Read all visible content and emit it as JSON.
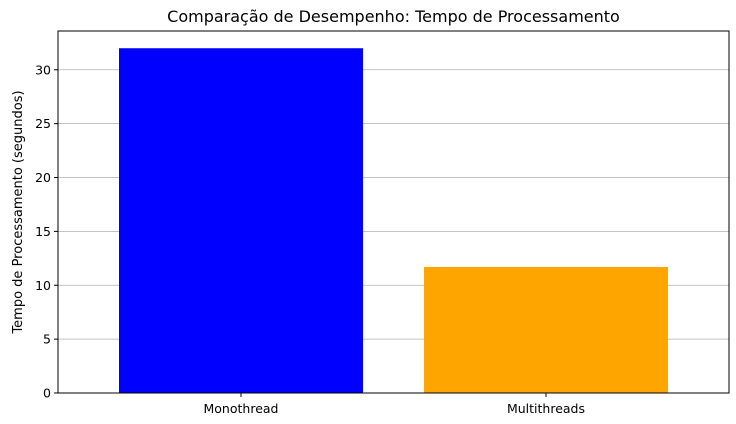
{
  "chart_data": {
    "type": "bar",
    "title": "Comparação de Desempenho: Tempo de Processamento",
    "xlabel": "",
    "ylabel": "Tempo de Processamento (segundos)",
    "categories": [
      "Monothread",
      "Multithreads"
    ],
    "values": [
      32.0,
      11.7
    ],
    "colors": [
      "#0000ff",
      "#ffa500"
    ],
    "ylim": [
      0,
      33.6
    ],
    "yticks": [
      0,
      5,
      10,
      15,
      20,
      25,
      30
    ],
    "grid": "y-axis only",
    "legend": "none"
  }
}
